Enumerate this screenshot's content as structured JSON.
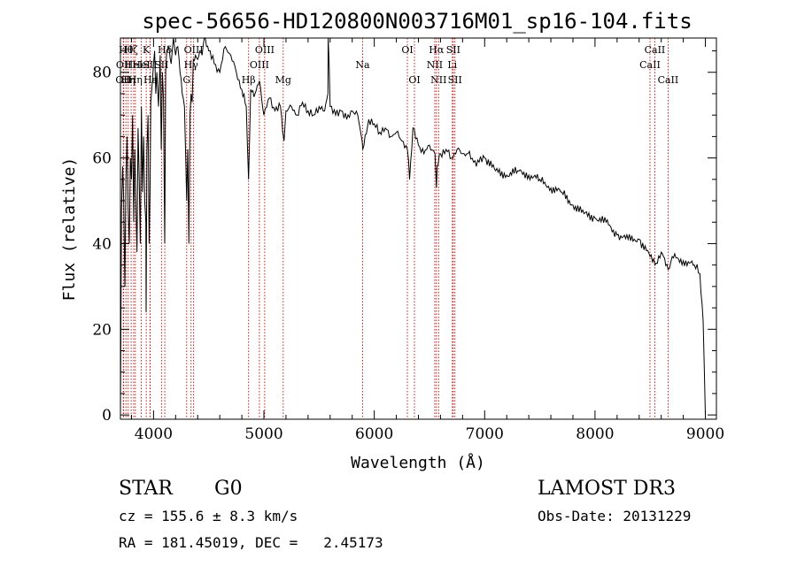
{
  "chart_data": {
    "type": "line",
    "title": "spec-56656-HD120800N003716M01_sp16-104.fits",
    "xlabel": "Wavelength (Å)",
    "ylabel": "Flux (relative)",
    "xlim": [
      3700,
      9100
    ],
    "ylim": [
      -1,
      88
    ],
    "xticks": [
      4000,
      5000,
      6000,
      7000,
      8000,
      9000
    ],
    "yticks": [
      0,
      20,
      40,
      60,
      80
    ],
    "series": [
      {
        "name": "flux",
        "x": [
          3700,
          3710,
          3720,
          3730,
          3740,
          3750,
          3760,
          3770,
          3780,
          3790,
          3800,
          3810,
          3820,
          3830,
          3840,
          3850,
          3860,
          3870,
          3880,
          3890,
          3900,
          3910,
          3920,
          3930,
          3933,
          3940,
          3950,
          3960,
          3968,
          3975,
          3990,
          4000,
          4010,
          4020,
          4030,
          4045,
          4060,
          4070,
          4080,
          4090,
          4101,
          4110,
          4120,
          4140,
          4160,
          4180,
          4200,
          4220,
          4240,
          4260,
          4280,
          4300,
          4310,
          4320,
          4330,
          4340,
          4350,
          4360,
          4380,
          4400,
          4420,
          4440,
          4460,
          4480,
          4500,
          4550,
          4600,
          4650,
          4700,
          4750,
          4800,
          4840,
          4861,
          4880,
          4920,
          4960,
          5000,
          5050,
          5100,
          5150,
          5170,
          5183,
          5200,
          5250,
          5300,
          5350,
          5400,
          5450,
          5500,
          5550,
          5580,
          5582,
          5600,
          5650,
          5700,
          5750,
          5800,
          5850,
          5890,
          5896,
          5950,
          6000,
          6050,
          6100,
          6150,
          6200,
          6250,
          6300,
          6320,
          6350,
          6400,
          6450,
          6500,
          6550,
          6563,
          6570,
          6600,
          6650,
          6700,
          6750,
          6800,
          6850,
          6900,
          6950,
          7000,
          7100,
          7200,
          7300,
          7400,
          7500,
          7600,
          7700,
          7800,
          7900,
          8000,
          8100,
          8200,
          8300,
          8400,
          8498,
          8542,
          8600,
          8662,
          8700,
          8800,
          8900,
          8950,
          8980,
          9000
        ],
        "values": [
          0,
          48,
          58,
          50,
          30,
          55,
          65,
          48,
          40,
          60,
          55,
          70,
          45,
          62,
          50,
          38,
          67,
          55,
          40,
          72,
          52,
          65,
          50,
          45,
          24,
          62,
          70,
          40,
          52,
          73,
          78,
          82,
          85,
          75,
          80,
          72,
          84,
          62,
          80,
          74,
          40,
          80,
          85,
          86,
          82,
          88,
          84,
          86,
          80,
          75,
          72,
          50,
          62,
          40,
          70,
          75,
          73,
          83,
          84,
          83,
          85,
          84,
          88,
          86,
          85,
          82,
          80,
          86,
          84,
          80,
          76,
          72,
          55,
          76,
          75,
          78,
          70,
          74,
          71,
          72,
          66,
          64,
          71,
          72,
          70,
          73,
          71,
          70,
          72,
          71,
          75,
          90,
          72,
          70,
          71,
          69,
          71,
          70,
          64,
          62,
          69,
          68,
          66,
          67,
          65,
          66,
          64,
          62,
          55,
          67,
          63,
          61,
          63,
          61,
          53,
          58,
          61,
          62,
          60,
          62,
          61,
          61,
          59,
          59,
          60,
          57,
          56,
          57,
          56,
          55,
          53,
          52,
          49,
          47,
          46,
          45,
          42,
          41,
          41,
          37,
          35,
          38,
          34,
          37,
          36,
          35,
          33,
          22,
          0
        ]
      }
    ],
    "lines": [
      {
        "wl": 3726,
        "label": "OII",
        "row": 3
      },
      {
        "wl": 3730,
        "label": "OII",
        "row": 2
      },
      {
        "wl": 3750,
        "label": "Hθ",
        "row": 1
      },
      {
        "wl": 3770,
        "label": "Hη",
        "row": 3
      },
      {
        "wl": 3797,
        "label": "Hζ",
        "row": 1
      },
      {
        "wl": 3820,
        "label": "HeI",
        "row": 2
      },
      {
        "wl": 3835,
        "label": "Hη",
        "row": 3
      },
      {
        "wl": 3889,
        "label": "HeI",
        "row": 2
      },
      {
        "wl": 3934,
        "label": "K",
        "row": 1
      },
      {
        "wl": 3968,
        "label": "SII",
        "row": 2
      },
      {
        "wl": 3970,
        "label": "Hε",
        "row": 3
      },
      {
        "wl": 4072,
        "label": "SII",
        "row": 2
      },
      {
        "wl": 4102,
        "label": "Hδ",
        "row": 1
      },
      {
        "wl": 4300,
        "label": "G",
        "row": 3
      },
      {
        "wl": 4340,
        "label": "Hγ",
        "row": 2
      },
      {
        "wl": 4363,
        "label": "OIII",
        "row": 1
      },
      {
        "wl": 4861,
        "label": "Hβ",
        "row": 3
      },
      {
        "wl": 4959,
        "label": "OIII",
        "row": 2
      },
      {
        "wl": 5007,
        "label": "OIII",
        "row": 1
      },
      {
        "wl": 5175,
        "label": "Mg",
        "row": 3
      },
      {
        "wl": 5894,
        "label": "Na",
        "row": 2
      },
      {
        "wl": 6300,
        "label": "OI",
        "row": 1
      },
      {
        "wl": 6364,
        "label": "OI",
        "row": 3
      },
      {
        "wl": 6548,
        "label": "NII",
        "row": 2
      },
      {
        "wl": 6563,
        "label": "Hα",
        "row": 1
      },
      {
        "wl": 6583,
        "label": "NII",
        "row": 3
      },
      {
        "wl": 6707,
        "label": "Li",
        "row": 2
      },
      {
        "wl": 6716,
        "label": "SII",
        "row": 1
      },
      {
        "wl": 6731,
        "label": "SII",
        "row": 3
      },
      {
        "wl": 8498,
        "label": "CaII",
        "row": 2
      },
      {
        "wl": 8542,
        "label": "CaII",
        "row": 1
      },
      {
        "wl": 8662,
        "label": "CaII",
        "row": 3
      }
    ]
  },
  "info": {
    "class": "STAR",
    "subclass": "G0",
    "survey": "LAMOST DR3",
    "cz": "cz = 155.6 ± 8.3 km/s",
    "obs_date": "Obs-Date: 20131229",
    "coords": "RA = 181.45019, DEC =   2.45173"
  },
  "colors": {
    "line_marker": "#cc0000",
    "spectrum": "#000000"
  }
}
